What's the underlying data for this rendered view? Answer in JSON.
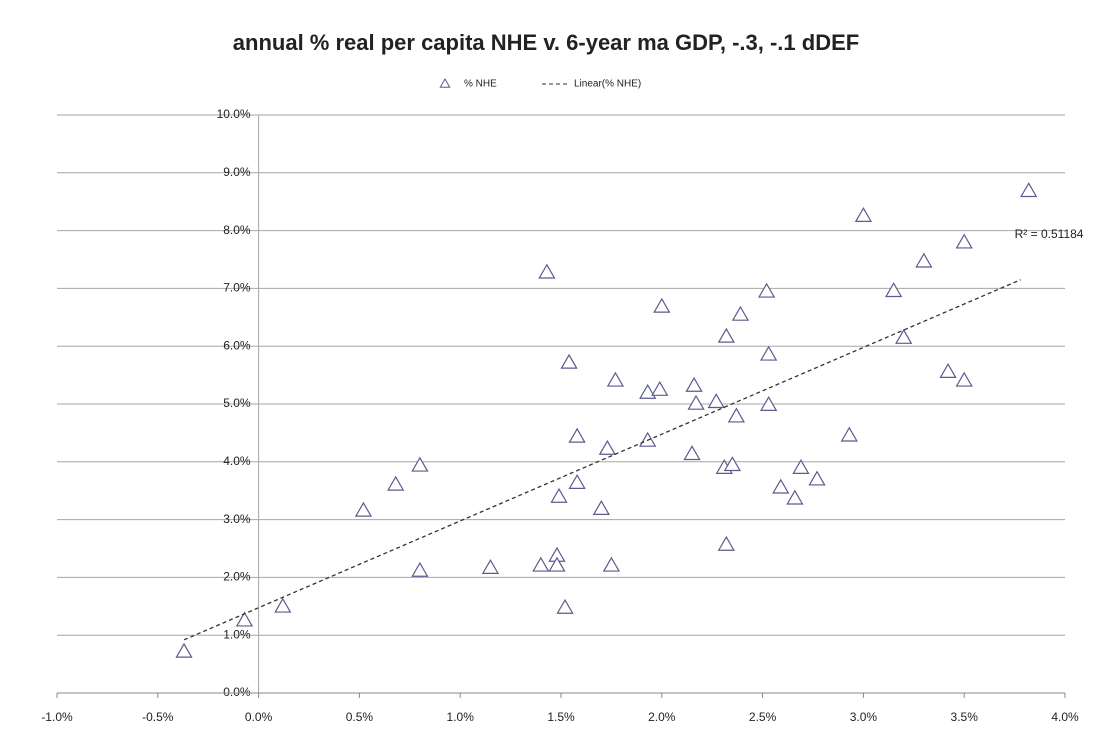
{
  "chart_data": {
    "type": "scatter",
    "title": "annual % real per capita NHE  v.  6-year ma GDP, -.3, -.1 dDEF",
    "series": [
      {
        "name": "% NHE",
        "color": "#5b5b8f",
        "marker": "triangle",
        "x": [
          -0.37,
          -0.07,
          0.12,
          0.52,
          0.68,
          0.8,
          0.8,
          1.15,
          1.4,
          1.43,
          1.48,
          1.48,
          1.49,
          1.52,
          1.54,
          1.58,
          1.58,
          1.7,
          1.73,
          1.75,
          1.77,
          1.93,
          1.93,
          1.99,
          2.0,
          2.15,
          2.16,
          2.17,
          2.27,
          2.32,
          2.31,
          2.32,
          2.35,
          2.37,
          2.39,
          2.52,
          2.53,
          2.53,
          2.59,
          2.66,
          2.69,
          2.77,
          2.93,
          3.0,
          3.15,
          3.2,
          3.3,
          3.42,
          3.5,
          3.5,
          3.82
        ],
        "values": [
          0.71,
          1.25,
          1.49,
          3.15,
          3.6,
          3.93,
          2.11,
          2.16,
          2.2,
          7.27,
          2.37,
          2.2,
          3.39,
          1.47,
          5.71,
          4.43,
          3.63,
          3.18,
          4.22,
          2.2,
          5.4,
          5.19,
          4.36,
          5.24,
          6.68,
          4.13,
          5.31,
          5.0,
          5.03,
          6.16,
          3.89,
          2.56,
          3.94,
          4.78,
          6.54,
          6.94,
          4.98,
          5.85,
          3.55,
          3.36,
          3.89,
          3.69,
          4.45,
          8.25,
          6.95,
          6.14,
          7.46,
          5.55,
          7.79,
          5.4,
          8.68
        ]
      },
      {
        "name": "Linear(% NHE)",
        "color": "#333333",
        "dashed": true,
        "x": [
          -0.37,
          3.78
        ],
        "values": [
          0.92,
          7.15
        ]
      }
    ],
    "annotation": "R² = 0.51184",
    "xlim": [
      -1,
      4
    ],
    "xticks": [
      {
        "value": -1,
        "label": "-1.0%"
      },
      {
        "value": -0.5,
        "label": "-0.5%"
      },
      {
        "value": 0,
        "label": "0.0%"
      },
      {
        "value": 0.5,
        "label": "0.5%"
      },
      {
        "value": 1,
        "label": "1.0%"
      },
      {
        "value": 1.5,
        "label": "1.5%"
      },
      {
        "value": 2,
        "label": "2.0%"
      },
      {
        "value": 2.5,
        "label": "2.5%"
      },
      {
        "value": 3,
        "label": "3.0%"
      },
      {
        "value": 3.5,
        "label": "3.5%"
      },
      {
        "value": 4,
        "label": "4.0%"
      }
    ],
    "ylim": [
      0,
      10
    ],
    "yticks": [
      {
        "value": 0,
        "label": "0.0%"
      },
      {
        "value": 1,
        "label": "1.0%"
      },
      {
        "value": 2,
        "label": "2.0%"
      },
      {
        "value": 3,
        "label": "3.0%"
      },
      {
        "value": 4,
        "label": "4.0%"
      },
      {
        "value": 5,
        "label": "5.0%"
      },
      {
        "value": 6,
        "label": "6.0%"
      },
      {
        "value": 7,
        "label": "7.0%"
      },
      {
        "value": 8,
        "label": "8.0%"
      },
      {
        "value": 9,
        "label": "9.0%"
      },
      {
        "value": 10,
        "label": "10.0%"
      }
    ],
    "grid": true
  }
}
